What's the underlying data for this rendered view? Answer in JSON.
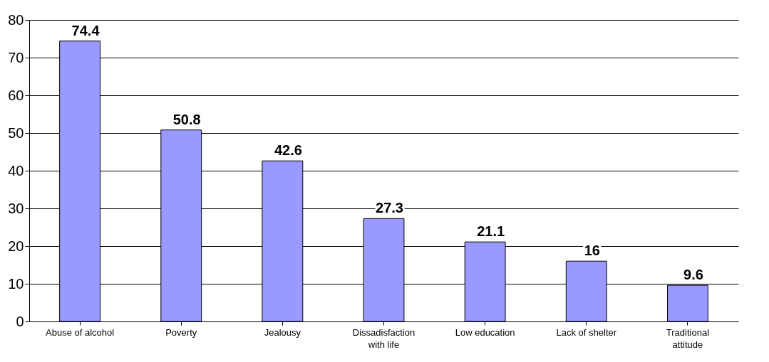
{
  "chart_data": {
    "type": "bar",
    "categories": [
      "Abuse of alcohol",
      "Poverty",
      "Jealousy",
      "Dissadisfaction with life",
      "Low education",
      "Lack of shelter",
      "Traditional attitude"
    ],
    "values": [
      74.4,
      50.8,
      42.6,
      27.3,
      21.1,
      16,
      9.6
    ],
    "color": "#9999ff",
    "data_labels": true,
    "ylim": [
      0,
      80
    ],
    "yticks": [
      0,
      10,
      20,
      30,
      40,
      50,
      60,
      70,
      80
    ],
    "grid": "y"
  }
}
